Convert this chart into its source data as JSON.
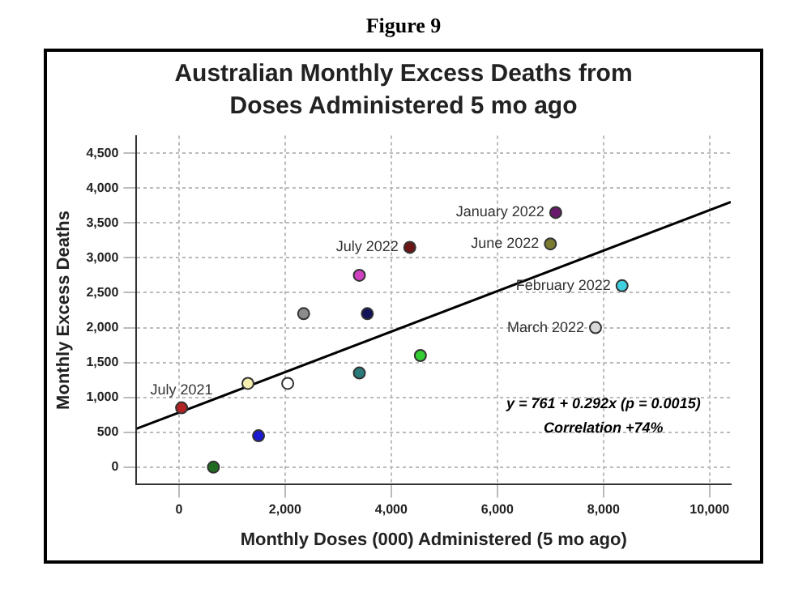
{
  "chart_data": {
    "type": "scatter",
    "title": "Figure 9",
    "subtitle": "Australian Monthly Excess Deaths from Doses Administered 5 mo ago",
    "xlabel": "Monthly Doses (000) Administered (5 mo ago)",
    "ylabel": "Monthly Excess Deaths",
    "xlim": [
      -800,
      10400
    ],
    "ylim": [
      -250,
      4750
    ],
    "xticks": [
      0,
      {
        "value": 2000,
        "label": "2,000"
      },
      {
        "value": 4000,
        "label": "4,000"
      },
      {
        "value": 6000,
        "label": "6,000"
      },
      {
        "value": 8000,
        "label": "8,000"
      },
      {
        "value": 10000,
        "label": "10,000"
      }
    ],
    "yticks": [
      0,
      500,
      {
        "value": 1000,
        "label": "1,000"
      },
      {
        "value": 1500,
        "label": "1,500"
      },
      {
        "value": 2000,
        "label": "2,000"
      },
      {
        "value": 2500,
        "label": "2,500"
      },
      {
        "value": 3000,
        "label": "3,000"
      },
      {
        "value": 3500,
        "label": "3,500"
      },
      {
        "value": 4000,
        "label": "4,000"
      },
      {
        "value": 4500,
        "label": "4,500"
      }
    ],
    "grid": true,
    "legend": false,
    "series": [
      {
        "x": [
          50,
          650,
          1300,
          1500,
          2050,
          2350,
          3400,
          3400,
          3550,
          4350,
          4550,
          7100,
          7000,
          8350,
          7850
        ],
        "values": [
          850,
          0,
          1200,
          450,
          1200,
          2200,
          2750,
          1350,
          2200,
          3150,
          1600,
          3650,
          3200,
          2600,
          2000
        ],
        "colors": [
          "#b22222",
          "#1f6b1f",
          "#f5f0b0",
          "#1a1ad0",
          "#ffffff",
          "#8c8c8c",
          "#d040c0",
          "#2a7a7a",
          "#12125a",
          "#6b1515",
          "#33cc33",
          "#6a1a6a",
          "#7a7a30",
          "#40d0e0",
          "#d8d8d8"
        ],
        "marker": "circle"
      },
      {
        "type": "line",
        "x": [
          -800,
          10400
        ],
        "values": [
          550,
          3800
        ],
        "color": "#000000",
        "marker": "none"
      }
    ],
    "annotations": [
      {
        "text": "July 2021",
        "x": 50,
        "y": 850
      },
      {
        "text": "July 2022",
        "x": 4350,
        "y": 3150
      },
      {
        "text": "January 2022",
        "x": 7100,
        "y": 3650
      },
      {
        "text": "June 2022",
        "x": 7000,
        "y": 3200
      },
      {
        "text": "February 2022",
        "x": 8350,
        "y": 2600
      },
      {
        "text": "March 2022",
        "x": 7850,
        "y": 2000
      },
      "y = 761 + 0.292x (p = 0.0015)",
      "Correlation +74%"
    ]
  }
}
